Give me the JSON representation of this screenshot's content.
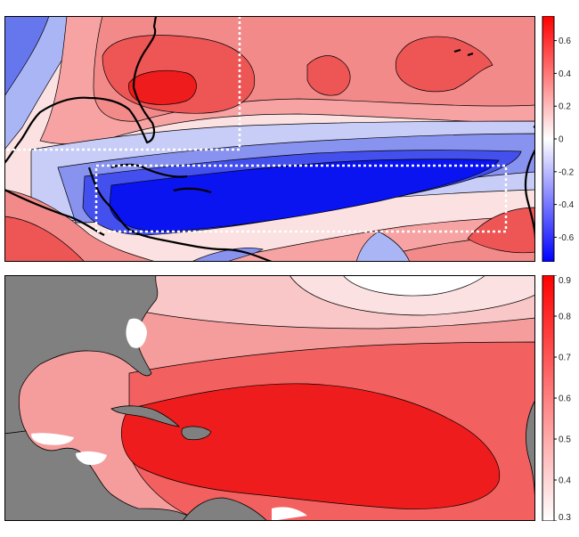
{
  "panels": [
    {
      "id": "top",
      "colorbar": {
        "min": -0.75,
        "max": 0.75,
        "ticks": [
          {
            "value": 0.6,
            "label": "0.6"
          },
          {
            "value": 0.4,
            "label": "0.4"
          },
          {
            "value": 0.2,
            "label": "0.2"
          },
          {
            "value": 0.0,
            "label": "0"
          },
          {
            "value": -0.2,
            "label": "-0.2"
          },
          {
            "value": -0.4,
            "label": "-0.4"
          },
          {
            "value": -0.6,
            "label": "-0.6"
          }
        ],
        "colors": {
          "low": "#0000ff",
          "mid": "#ffffff",
          "high": "#ff0000"
        }
      },
      "coastline_color": "#000000",
      "boxes_style": "white dotted"
    },
    {
      "id": "bottom",
      "colorbar": {
        "min": 0.3,
        "max": 0.9,
        "ticks": [
          {
            "value": 0.9,
            "label": "0.9"
          },
          {
            "value": 0.8,
            "label": "0.8"
          },
          {
            "value": 0.7,
            "label": "0.7"
          },
          {
            "value": 0.6,
            "label": "0.6"
          },
          {
            "value": 0.5,
            "label": "0.5"
          },
          {
            "value": 0.4,
            "label": "0.4"
          },
          {
            "value": 0.3,
            "label": "0.3"
          }
        ],
        "colors": {
          "low": "#ffffff",
          "high": "#ff0000"
        }
      },
      "land_color": "#808080"
    }
  ]
}
